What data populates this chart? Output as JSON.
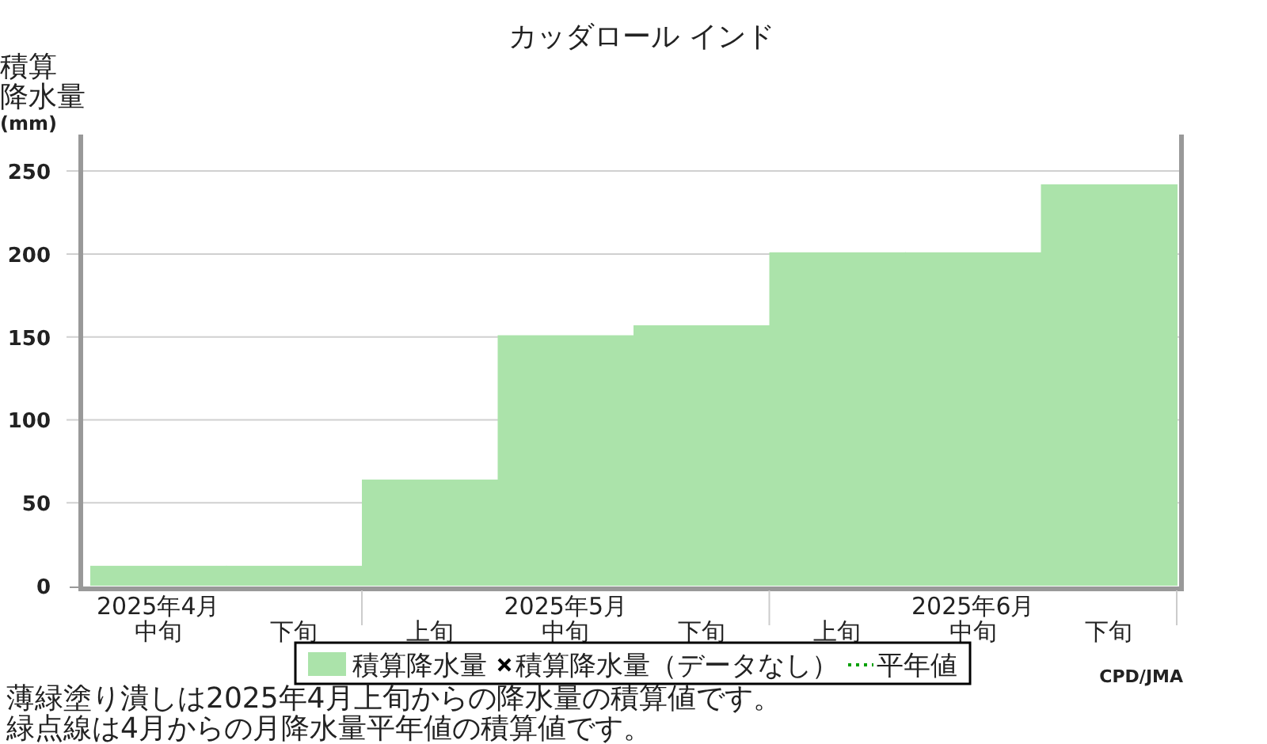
{
  "chart_data": {
    "type": "bar",
    "title": "カッダロール インド",
    "ylabel": "積算降水量(mm)",
    "categories": [
      "2025年4月中旬",
      "下旬",
      "上旬",
      "2025年5月中旬",
      "下旬",
      "上旬",
      "2025年6月中旬",
      "下旬"
    ],
    "series": [
      {
        "name": "積算降水量",
        "color": "#abe3aa",
        "values": [
          12,
          12,
          64,
          151,
          157,
          201,
          201,
          242
        ]
      },
      {
        "name": "積算降水量（データなし）",
        "type": "scatter",
        "marker": "cross",
        "color": "#000000",
        "values": [
          null,
          null,
          null,
          null,
          null,
          null,
          null,
          null
        ]
      },
      {
        "name": "平年値",
        "type": "line",
        "line_style": "dotted",
        "color": "#00a000",
        "values": [
          null,
          null,
          null,
          null,
          null,
          null,
          null,
          null
        ]
      }
    ],
    "ylim": [
      0,
      272
    ],
    "yticks": [
      0,
      50,
      100,
      150,
      200,
      250
    ],
    "grid": "y",
    "legend": "bottom",
    "annotations": [
      "CPD/JMA",
      "薄緑塗り潰しは2025年4月上旬からの降水量の積算値です。",
      "緑点線は4月からの月降水量平年値の積算値です。"
    ]
  }
}
